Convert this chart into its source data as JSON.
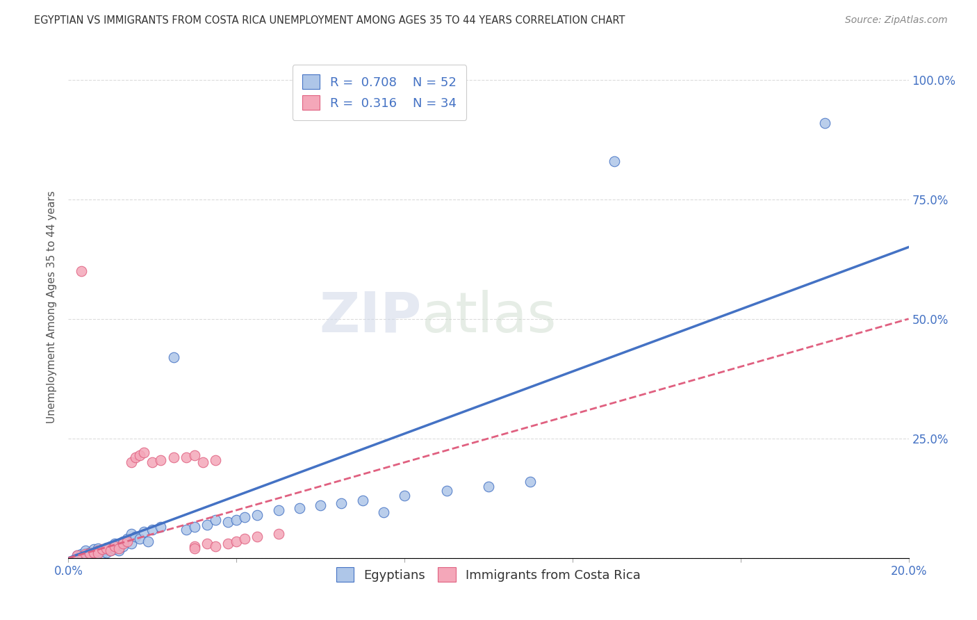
{
  "title": "EGYPTIAN VS IMMIGRANTS FROM COSTA RICA UNEMPLOYMENT AMONG AGES 35 TO 44 YEARS CORRELATION CHART",
  "source": "Source: ZipAtlas.com",
  "ylabel": "Unemployment Among Ages 35 to 44 years",
  "xlim": [
    0.0,
    0.2
  ],
  "ylim": [
    0.0,
    1.05
  ],
  "xticks": [
    0.0,
    0.04,
    0.08,
    0.12,
    0.16,
    0.2
  ],
  "xticklabels": [
    "0.0%",
    "",
    "",
    "",
    "",
    "20.0%"
  ],
  "yticks": [
    0.0,
    0.25,
    0.5,
    0.75,
    1.0
  ],
  "yticklabels_right": [
    "",
    "25.0%",
    "50.0%",
    "75.0%",
    "100.0%"
  ],
  "legend_R_blue": "0.708",
  "legend_N_blue": "52",
  "legend_R_pink": "0.316",
  "legend_N_pink": "34",
  "blue_color": "#aec6e8",
  "pink_color": "#f4a7b9",
  "blue_edge_color": "#4472c4",
  "pink_edge_color": "#e06080",
  "blue_line_color": "#4472c4",
  "pink_line_color": "#e06080",
  "watermark_zip": "ZIP",
  "watermark_atlas": "atlas",
  "blue_scatter_x": [
    0.002,
    0.003,
    0.004,
    0.004,
    0.005,
    0.005,
    0.006,
    0.006,
    0.007,
    0.007,
    0.008,
    0.008,
    0.009,
    0.009,
    0.01,
    0.01,
    0.011,
    0.011,
    0.012,
    0.012,
    0.013,
    0.013,
    0.014,
    0.015,
    0.015,
    0.016,
    0.017,
    0.018,
    0.019,
    0.02,
    0.022,
    0.025,
    0.028,
    0.03,
    0.033,
    0.035,
    0.038,
    0.04,
    0.042,
    0.045,
    0.05,
    0.055,
    0.06,
    0.065,
    0.07,
    0.075,
    0.08,
    0.09,
    0.1,
    0.11,
    0.13,
    0.18
  ],
  "blue_scatter_y": [
    0.005,
    0.008,
    0.01,
    0.015,
    0.008,
    0.012,
    0.01,
    0.018,
    0.012,
    0.02,
    0.01,
    0.015,
    0.012,
    0.022,
    0.015,
    0.025,
    0.018,
    0.03,
    0.02,
    0.015,
    0.025,
    0.035,
    0.04,
    0.03,
    0.05,
    0.045,
    0.04,
    0.055,
    0.035,
    0.06,
    0.065,
    0.42,
    0.06,
    0.065,
    0.07,
    0.08,
    0.075,
    0.08,
    0.085,
    0.09,
    0.1,
    0.105,
    0.11,
    0.115,
    0.12,
    0.095,
    0.13,
    0.14,
    0.15,
    0.16,
    0.83,
    0.91
  ],
  "pink_scatter_x": [
    0.002,
    0.003,
    0.004,
    0.005,
    0.006,
    0.007,
    0.007,
    0.008,
    0.009,
    0.01,
    0.011,
    0.012,
    0.013,
    0.014,
    0.015,
    0.016,
    0.017,
    0.018,
    0.02,
    0.022,
    0.025,
    0.028,
    0.03,
    0.032,
    0.035,
    0.038,
    0.04,
    0.042,
    0.045,
    0.05,
    0.03,
    0.033,
    0.03,
    0.035
  ],
  "pink_scatter_y": [
    0.005,
    0.6,
    0.008,
    0.01,
    0.012,
    0.015,
    0.01,
    0.018,
    0.02,
    0.015,
    0.025,
    0.02,
    0.03,
    0.035,
    0.2,
    0.21,
    0.215,
    0.22,
    0.2,
    0.205,
    0.21,
    0.21,
    0.215,
    0.2,
    0.205,
    0.03,
    0.035,
    0.04,
    0.045,
    0.05,
    0.025,
    0.03,
    0.02,
    0.025
  ],
  "blue_line_x": [
    0.0,
    0.2
  ],
  "blue_line_y": [
    0.0,
    0.65
  ],
  "pink_line_x": [
    0.0,
    0.2
  ],
  "pink_line_y": [
    0.0,
    0.5
  ],
  "grid_color": "#cccccc",
  "bg_color": "#ffffff"
}
